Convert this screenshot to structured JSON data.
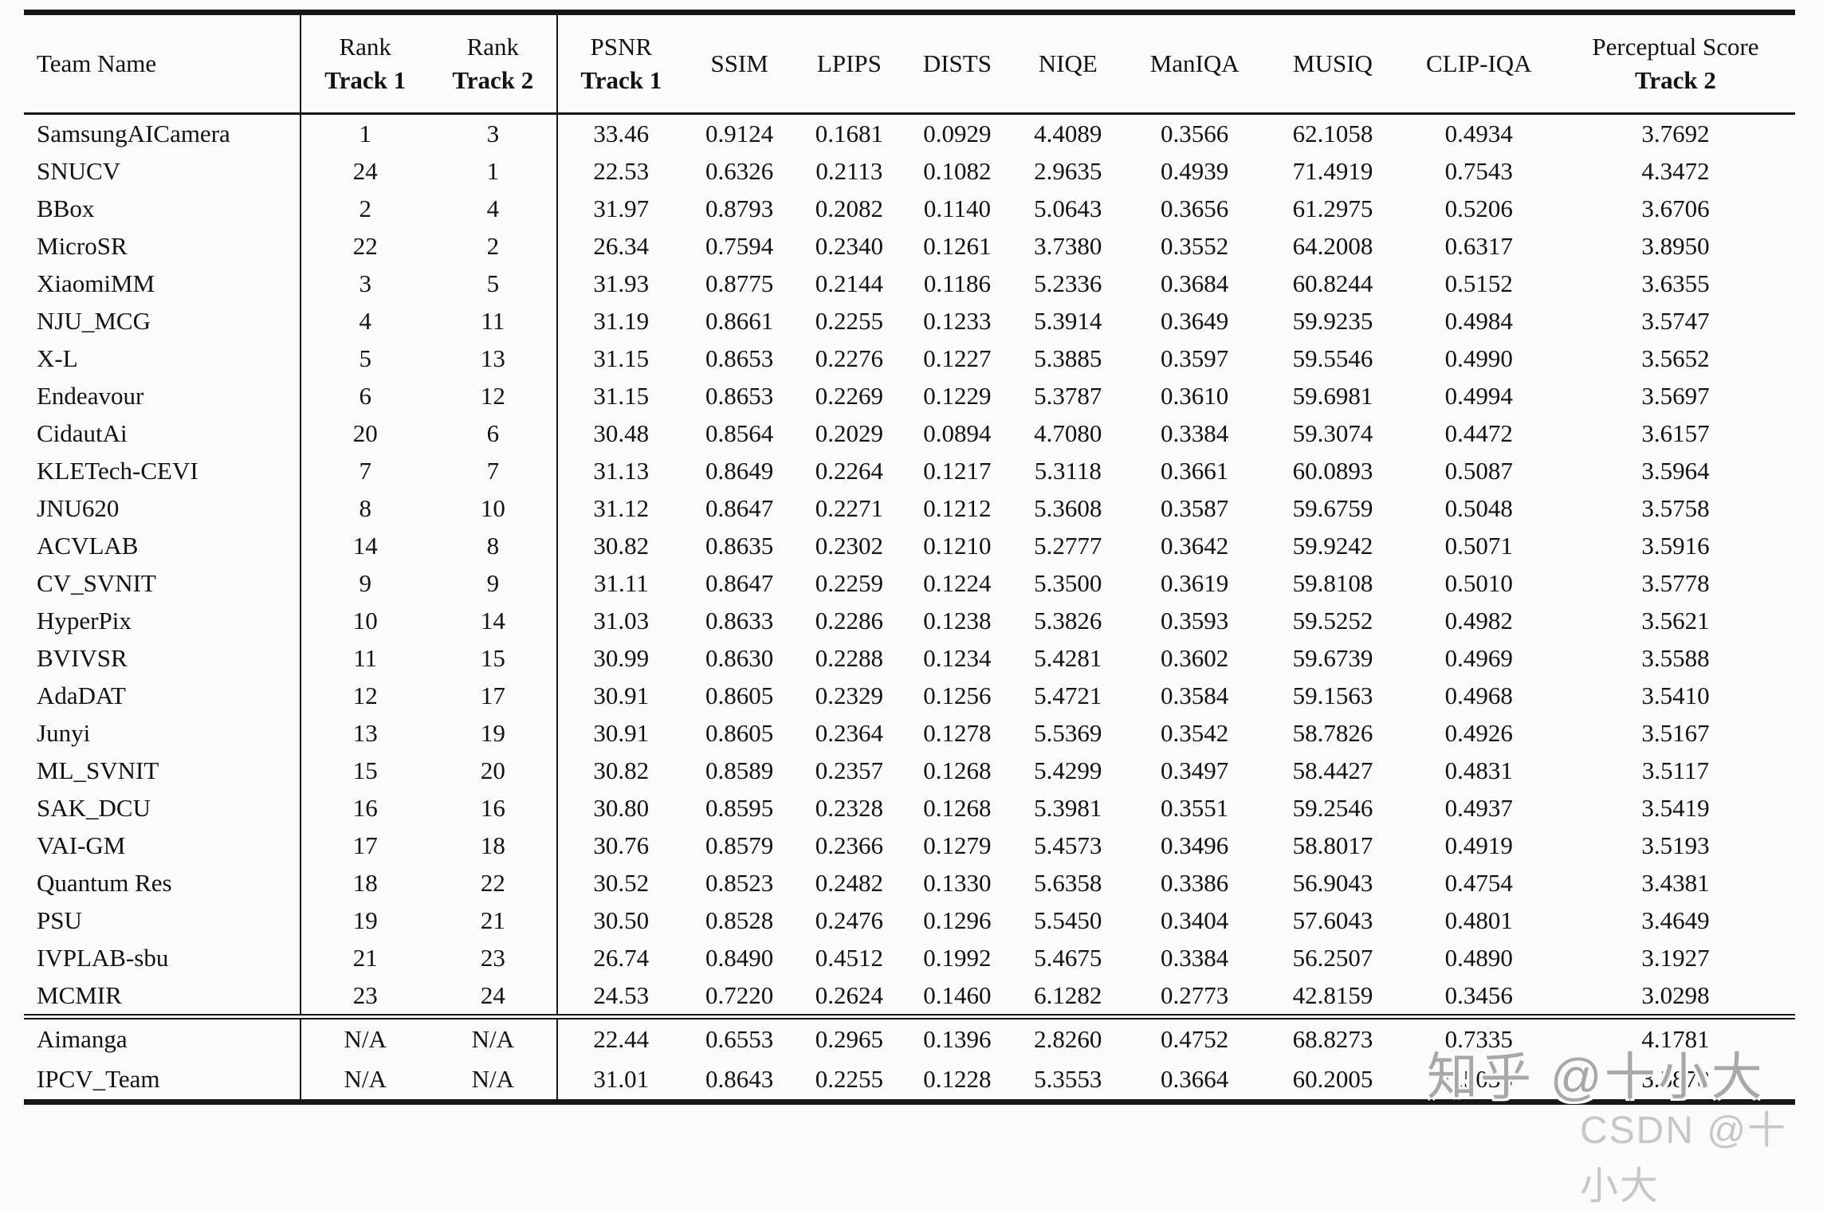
{
  "table": {
    "columns": [
      {
        "label": "Team Name",
        "sub": ""
      },
      {
        "label": "Rank",
        "sub": "Track 1"
      },
      {
        "label": "Rank",
        "sub": "Track 2"
      },
      {
        "label": "PSNR",
        "sub": "Track 1"
      },
      {
        "label": "SSIM",
        "sub": ""
      },
      {
        "label": "LPIPS",
        "sub": ""
      },
      {
        "label": "DISTS",
        "sub": ""
      },
      {
        "label": "NIQE",
        "sub": ""
      },
      {
        "label": "ManIQA",
        "sub": ""
      },
      {
        "label": "MUSIQ",
        "sub": ""
      },
      {
        "label": "CLIP-IQA",
        "sub": ""
      },
      {
        "label": "Perceptual Score",
        "sub": "Track 2"
      }
    ],
    "rows": [
      [
        "SamsungAICamera",
        "1",
        "3",
        "33.46",
        "0.9124",
        "0.1681",
        "0.0929",
        "4.4089",
        "0.3566",
        "62.1058",
        "0.4934",
        "3.7692"
      ],
      [
        "SNUCV",
        "24",
        "1",
        "22.53",
        "0.6326",
        "0.2113",
        "0.1082",
        "2.9635",
        "0.4939",
        "71.4919",
        "0.7543",
        "4.3472"
      ],
      [
        "BBox",
        "2",
        "4",
        "31.97",
        "0.8793",
        "0.2082",
        "0.1140",
        "5.0643",
        "0.3656",
        "61.2975",
        "0.5206",
        "3.6706"
      ],
      [
        "MicroSR",
        "22",
        "2",
        "26.34",
        "0.7594",
        "0.2340",
        "0.1261",
        "3.7380",
        "0.3552",
        "64.2008",
        "0.6317",
        "3.8950"
      ],
      [
        "XiaomiMM",
        "3",
        "5",
        "31.93",
        "0.8775",
        "0.2144",
        "0.1186",
        "5.2336",
        "0.3684",
        "60.8244",
        "0.5152",
        "3.6355"
      ],
      [
        "NJU_MCG",
        "4",
        "11",
        "31.19",
        "0.8661",
        "0.2255",
        "0.1233",
        "5.3914",
        "0.3649",
        "59.9235",
        "0.4984",
        "3.5747"
      ],
      [
        "X-L",
        "5",
        "13",
        "31.15",
        "0.8653",
        "0.2276",
        "0.1227",
        "5.3885",
        "0.3597",
        "59.5546",
        "0.4990",
        "3.5652"
      ],
      [
        "Endeavour",
        "6",
        "12",
        "31.15",
        "0.8653",
        "0.2269",
        "0.1229",
        "5.3787",
        "0.3610",
        "59.6981",
        "0.4994",
        "3.5697"
      ],
      [
        "CidautAi",
        "20",
        "6",
        "30.48",
        "0.8564",
        "0.2029",
        "0.0894",
        "4.7080",
        "0.3384",
        "59.3074",
        "0.4472",
        "3.6157"
      ],
      [
        "KLETech-CEVI",
        "7",
        "7",
        "31.13",
        "0.8649",
        "0.2264",
        "0.1217",
        "5.3118",
        "0.3661",
        "60.0893",
        "0.5087",
        "3.5964"
      ],
      [
        "JNU620",
        "8",
        "10",
        "31.12",
        "0.8647",
        "0.2271",
        "0.1212",
        "5.3608",
        "0.3587",
        "59.6759",
        "0.5048",
        "3.5758"
      ],
      [
        "ACVLAB",
        "14",
        "8",
        "30.82",
        "0.8635",
        "0.2302",
        "0.1210",
        "5.2777",
        "0.3642",
        "59.9242",
        "0.5071",
        "3.5916"
      ],
      [
        "CV_SVNIT",
        "9",
        "9",
        "31.11",
        "0.8647",
        "0.2259",
        "0.1224",
        "5.3500",
        "0.3619",
        "59.8108",
        "0.5010",
        "3.5778"
      ],
      [
        "HyperPix",
        "10",
        "14",
        "31.03",
        "0.8633",
        "0.2286",
        "0.1238",
        "5.3826",
        "0.3593",
        "59.5252",
        "0.4982",
        "3.5621"
      ],
      [
        "BVIVSR",
        "11",
        "15",
        "30.99",
        "0.8630",
        "0.2288",
        "0.1234",
        "5.4281",
        "0.3602",
        "59.6739",
        "0.4969",
        "3.5588"
      ],
      [
        "AdaDAT",
        "12",
        "17",
        "30.91",
        "0.8605",
        "0.2329",
        "0.1256",
        "5.4721",
        "0.3584",
        "59.1563",
        "0.4968",
        "3.5410"
      ],
      [
        "Junyi",
        "13",
        "19",
        "30.91",
        "0.8605",
        "0.2364",
        "0.1278",
        "5.5369",
        "0.3542",
        "58.7826",
        "0.4926",
        "3.5167"
      ],
      [
        "ML_SVNIT",
        "15",
        "20",
        "30.82",
        "0.8589",
        "0.2357",
        "0.1268",
        "5.4299",
        "0.3497",
        "58.4427",
        "0.4831",
        "3.5117"
      ],
      [
        "SAK_DCU",
        "16",
        "16",
        "30.80",
        "0.8595",
        "0.2328",
        "0.1268",
        "5.3981",
        "0.3551",
        "59.2546",
        "0.4937",
        "3.5419"
      ],
      [
        "VAI-GM",
        "17",
        "18",
        "30.76",
        "0.8579",
        "0.2366",
        "0.1279",
        "5.4573",
        "0.3496",
        "58.8017",
        "0.4919",
        "3.5193"
      ],
      [
        "Quantum Res",
        "18",
        "22",
        "30.52",
        "0.8523",
        "0.2482",
        "0.1330",
        "5.6358",
        "0.3386",
        "56.9043",
        "0.4754",
        "3.4381"
      ],
      [
        "PSU",
        "19",
        "21",
        "30.50",
        "0.8528",
        "0.2476",
        "0.1296",
        "5.5450",
        "0.3404",
        "57.6043",
        "0.4801",
        "3.4649"
      ],
      [
        "IVPLAB-sbu",
        "21",
        "23",
        "26.74",
        "0.8490",
        "0.4512",
        "0.1992",
        "5.4675",
        "0.3384",
        "56.2507",
        "0.4890",
        "3.1927"
      ],
      [
        "MCMIR",
        "23",
        "24",
        "24.53",
        "0.7220",
        "0.2624",
        "0.1460",
        "6.1282",
        "0.2773",
        "42.8159",
        "0.3456",
        "3.0298"
      ]
    ],
    "footer_rows": [
      [
        "Aimanga",
        "N/A",
        "N/A",
        "22.44",
        "0.6553",
        "0.2965",
        "0.1396",
        "2.8260",
        "0.4752",
        "68.8273",
        "0.7335",
        "4.1781"
      ],
      [
        "IPCV_Team",
        "N/A",
        "N/A",
        "31.01",
        "0.8643",
        "0.2255",
        "0.1228",
        "5.3553",
        "0.3664",
        "60.2005",
        "0.5033",
        "3.5878"
      ]
    ]
  },
  "watermark": {
    "line1": "知乎 @十小大",
    "line2": "CSDN @十小大",
    "color1": "#a8a8a8",
    "color2": "#c7c7c7"
  }
}
